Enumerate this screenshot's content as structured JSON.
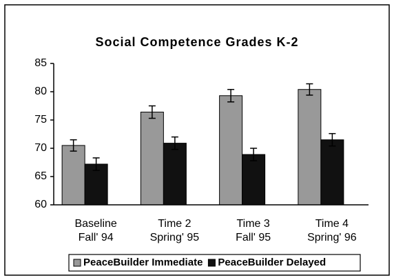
{
  "chart_data": {
    "type": "bar",
    "title": "Social Competence Grades K-2",
    "categories": [
      [
        "Baseline",
        "Fall' 94"
      ],
      [
        "Time 2",
        "Spring' 95"
      ],
      [
        "Time 3",
        "Fall' 95"
      ],
      [
        "Time 4",
        "Spring' 96"
      ]
    ],
    "series": [
      {
        "name": "PeaceBuilder Immediate",
        "color": "#999999",
        "values": [
          70.5,
          76.4,
          79.3,
          80.4
        ],
        "errors": [
          1.0,
          1.1,
          1.1,
          1.0
        ]
      },
      {
        "name": "PeaceBuilder Delayed",
        "color": "#111111",
        "values": [
          67.2,
          70.9,
          68.9,
          71.5
        ],
        "errors": [
          1.1,
          1.1,
          1.1,
          1.1
        ]
      }
    ],
    "ylim": [
      60,
      85
    ],
    "yticks": [
      60,
      65,
      70,
      75,
      80,
      85
    ],
    "grid": false,
    "legend": "bottom"
  }
}
